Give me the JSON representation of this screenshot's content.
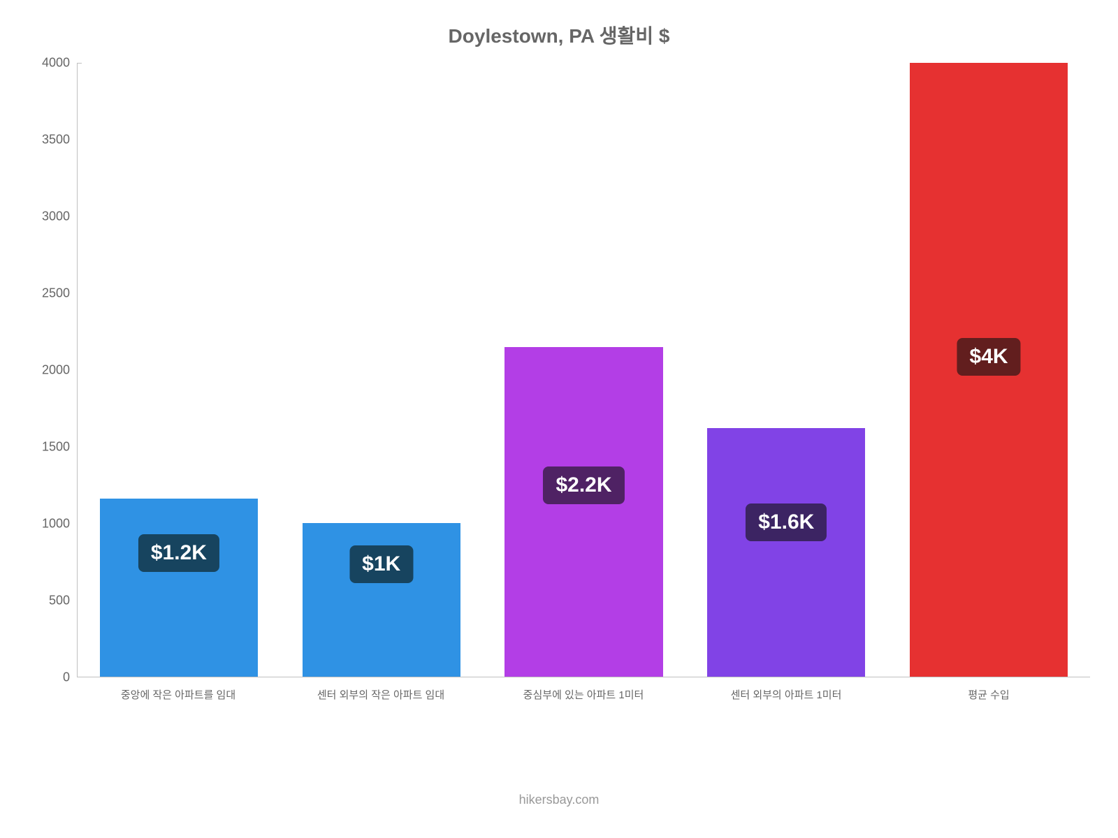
{
  "chart": {
    "type": "bar",
    "title": "Doylestown, PA 생활비 $",
    "title_fontsize": 28,
    "title_color": "#666666",
    "background_color": "#ffffff",
    "axis_color": "#c0c0c0",
    "tick_label_color": "#666666",
    "tick_label_fontsize": 18,
    "x_label_fontsize": 15,
    "ylim": [
      0,
      4000
    ],
    "ytick_step": 500,
    "yticks": [
      {
        "value": 0,
        "label": "0"
      },
      {
        "value": 500,
        "label": "500"
      },
      {
        "value": 1000,
        "label": "1000"
      },
      {
        "value": 1500,
        "label": "1500"
      },
      {
        "value": 2000,
        "label": "2000"
      },
      {
        "value": 2500,
        "label": "2500"
      },
      {
        "value": 3000,
        "label": "3000"
      },
      {
        "value": 3500,
        "label": "3500"
      },
      {
        "value": 4000,
        "label": "4000"
      }
    ],
    "bar_width_ratio": 0.78,
    "badge_fontsize": 30,
    "badge_text_color": "#ffffff",
    "badge_border_radius": 8,
    "series": [
      {
        "category": "중앙에 작은 아파트를 임대",
        "value": 1160,
        "value_label": "$1.2K",
        "bar_color": "#2f92e4",
        "badge_bg": "#17445f",
        "badge_offset_from_top": 340
      },
      {
        "category": "센터 외부의 작은 아파트 임대",
        "value": 1000,
        "value_label": "$1K",
        "bar_color": "#2f92e4",
        "badge_bg": "#17445f",
        "badge_offset_from_top": 255
      },
      {
        "category": "중심부에 있는 아파트 1미터",
        "value": 2150,
        "value_label": "$2.2K",
        "bar_color": "#b33ee6",
        "badge_bg": "#4f2264",
        "badge_offset_from_top": 890
      },
      {
        "category": "센터 외부의 아파트 1미터",
        "value": 1620,
        "value_label": "$1.6K",
        "bar_color": "#8143e6",
        "badge_bg": "#3c2463",
        "badge_offset_from_top": 600
      },
      {
        "category": "평균 수입",
        "value": 4000,
        "value_label": "$4K",
        "bar_color": "#e63131",
        "badge_bg": "#621e1e",
        "badge_offset_from_top": 1900
      }
    ],
    "credit": "hikersbay.com",
    "credit_color": "#999999",
    "credit_fontsize": 18
  }
}
